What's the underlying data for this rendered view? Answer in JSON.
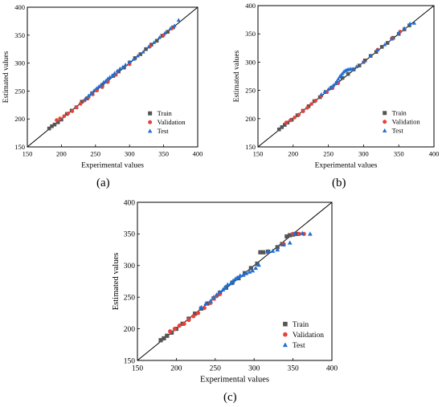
{
  "panels": [
    {
      "label": "(a)"
    },
    {
      "label": "(b)"
    },
    {
      "label": "(c)"
    }
  ],
  "colors": {
    "train": "#555555",
    "validation": "#e8403a",
    "test": "#1f6fd6",
    "line": "#000000"
  },
  "chart_data": [
    {
      "type": "scatter",
      "xlabel": "Experimental values",
      "ylabel": "Estimated values",
      "xlim": [
        150,
        400
      ],
      "ylim": [
        150,
        400
      ],
      "xticks": [
        150,
        200,
        250,
        300,
        350,
        400
      ],
      "yticks": [
        150,
        200,
        250,
        300,
        350,
        400
      ],
      "grid": false,
      "legend_position": "bottom-right",
      "reference_line": {
        "from": [
          150,
          150
        ],
        "to": [
          400,
          400
        ]
      },
      "series": [
        {
          "name": "Train",
          "marker": "square",
          "points": [
            [
              182,
              183
            ],
            [
              186,
              187
            ],
            [
              190,
              190
            ],
            [
              195,
              194
            ],
            [
              200,
              199
            ],
            [
              208,
              209
            ],
            [
              215,
              215
            ],
            [
              222,
              221
            ],
            [
              230,
              231
            ],
            [
              238,
              237
            ],
            [
              245,
              246
            ],
            [
              252,
              252
            ],
            [
              260,
              261
            ],
            [
              268,
              268
            ],
            [
              276,
              277
            ],
            [
              284,
              285
            ],
            [
              292,
              292
            ],
            [
              300,
              301
            ],
            [
              308,
              309
            ],
            [
              316,
              316
            ],
            [
              324,
              325
            ],
            [
              332,
              333
            ],
            [
              340,
              340
            ],
            [
              348,
              349
            ],
            [
              356,
              356
            ],
            [
              364,
              364
            ]
          ]
        },
        {
          "name": "Validation",
          "marker": "circle",
          "points": [
            [
              193,
              198
            ],
            [
              198,
              201
            ],
            [
              204,
              205
            ],
            [
              210,
              210
            ],
            [
              216,
              214
            ],
            [
              222,
              221
            ],
            [
              228,
              227
            ],
            [
              234,
              233
            ],
            [
              240,
              239
            ],
            [
              246,
              244
            ],
            [
              252,
              251
            ],
            [
              260,
              257
            ],
            [
              268,
              266
            ],
            [
              280,
              279
            ],
            [
              300,
              298
            ],
            [
              330,
              330
            ],
            [
              350,
              350
            ],
            [
              362,
              362
            ]
          ]
        },
        {
          "name": "Test",
          "marker": "triangle",
          "points": [
            [
              235,
              236
            ],
            [
              240,
              242
            ],
            [
              244,
              246
            ],
            [
              248,
              251
            ],
            [
              252,
              255
            ],
            [
              255,
              258
            ],
            [
              258,
              261
            ],
            [
              262,
              266
            ],
            [
              265,
              268
            ],
            [
              268,
              272
            ],
            [
              271,
              275
            ],
            [
              275,
              278
            ],
            [
              278,
              282
            ],
            [
              282,
              286
            ],
            [
              286,
              290
            ],
            [
              290,
              293
            ],
            [
              294,
              297
            ],
            [
              300,
              302
            ],
            [
              306,
              307
            ],
            [
              312,
              313
            ],
            [
              320,
              320
            ],
            [
              328,
              329
            ],
            [
              336,
              337
            ],
            [
              344,
              346
            ],
            [
              352,
              354
            ],
            [
              360,
              362
            ],
            [
              366,
              367
            ],
            [
              372,
              377
            ]
          ]
        }
      ]
    },
    {
      "type": "scatter",
      "xlabel": "Experimental values",
      "ylabel": "Estimated values",
      "xlim": [
        150,
        400
      ],
      "ylim": [
        150,
        400
      ],
      "xticks": [
        150,
        200,
        250,
        300,
        350,
        400
      ],
      "yticks": [
        150,
        200,
        250,
        300,
        350,
        400
      ],
      "grid": false,
      "legend_position": "bottom-right",
      "reference_line": {
        "from": [
          150,
          150
        ],
        "to": [
          400,
          400
        ]
      },
      "series": [
        {
          "name": "Train",
          "marker": "square",
          "points": [
            [
              180,
              181
            ],
            [
              184,
              185
            ],
            [
              188,
              189
            ],
            [
              192,
              193
            ],
            [
              198,
              198
            ],
            [
              206,
              206
            ],
            [
              214,
              214
            ],
            [
              222,
              222
            ],
            [
              230,
              231
            ],
            [
              238,
              238
            ],
            [
              246,
              247
            ],
            [
              254,
              254
            ],
            [
              262,
              263
            ],
            [
              270,
              272
            ],
            [
              278,
              279
            ],
            [
              286,
              287
            ],
            [
              294,
              294
            ],
            [
              302,
              303
            ],
            [
              310,
              311
            ],
            [
              318,
              318
            ],
            [
              326,
              327
            ],
            [
              334,
              334
            ],
            [
              342,
              343
            ],
            [
              350,
              350
            ],
            [
              358,
              358
            ],
            [
              365,
              365
            ]
          ]
        },
        {
          "name": "Validation",
          "marker": "circle",
          "points": [
            [
              190,
              193
            ],
            [
              196,
              197
            ],
            [
              202,
              202
            ],
            [
              208,
              207
            ],
            [
              214,
              213
            ],
            [
              220,
              219
            ],
            [
              226,
              226
            ],
            [
              232,
              232
            ],
            [
              240,
              240
            ],
            [
              248,
              247
            ],
            [
              256,
              254
            ],
            [
              264,
              263
            ],
            [
              300,
              300
            ],
            [
              320,
              322
            ],
            [
              340,
              342
            ],
            [
              352,
              354
            ]
          ]
        },
        {
          "name": "Test",
          "marker": "triangle",
          "points": [
            [
              240,
              243
            ],
            [
              245,
              248
            ],
            [
              250,
              252
            ],
            [
              254,
              256
            ],
            [
              257,
              259
            ],
            [
              260,
              262
            ],
            [
              262,
              266
            ],
            [
              264,
              270
            ],
            [
              266,
              274
            ],
            [
              268,
              277
            ],
            [
              270,
              280
            ],
            [
              272,
              283
            ],
            [
              274,
              285
            ],
            [
              276,
              286
            ],
            [
              278,
              287
            ],
            [
              280,
              287
            ],
            [
              282,
              288
            ],
            [
              285,
              288
            ],
            [
              290,
              292
            ],
            [
              300,
              300
            ],
            [
              310,
              311
            ],
            [
              320,
              322
            ],
            [
              330,
              331
            ],
            [
              340,
              341
            ],
            [
              350,
              352
            ],
            [
              358,
              360
            ],
            [
              366,
              368
            ],
            [
              372,
              369
            ]
          ]
        }
      ]
    },
    {
      "type": "scatter",
      "xlabel": "Experimental values",
      "ylabel": "Estimated values",
      "xlim": [
        150,
        400
      ],
      "ylim": [
        150,
        400
      ],
      "xticks": [
        150,
        200,
        250,
        300,
        350,
        400
      ],
      "yticks": [
        150,
        200,
        250,
        300,
        350,
        400
      ],
      "grid": false,
      "legend_position": "bottom-right",
      "reference_line": {
        "from": [
          150,
          150
        ],
        "to": [
          400,
          400
        ]
      },
      "series": [
        {
          "name": "Train",
          "marker": "square",
          "points": [
            [
              180,
              182
            ],
            [
              184,
              185
            ],
            [
              188,
              189
            ],
            [
              194,
              194
            ],
            [
              200,
              200
            ],
            [
              208,
              208
            ],
            [
              216,
              216
            ],
            [
              224,
              224
            ],
            [
              232,
              232
            ],
            [
              240,
              240
            ],
            [
              248,
              248
            ],
            [
              256,
              257
            ],
            [
              264,
              265
            ],
            [
              272,
              273
            ],
            [
              280,
              280
            ],
            [
              288,
              288
            ],
            [
              296,
              296
            ],
            [
              304,
              303
            ],
            [
              308,
              321
            ],
            [
              312,
              321
            ],
            [
              318,
              322
            ],
            [
              330,
              329
            ],
            [
              336,
              334
            ],
            [
              342,
              346
            ],
            [
              346,
              348
            ],
            [
              350,
              349
            ],
            [
              354,
              350
            ]
          ]
        },
        {
          "name": "Validation",
          "marker": "circle",
          "points": [
            [
              192,
              196
            ],
            [
              198,
              200
            ],
            [
              204,
              205
            ],
            [
              210,
              208
            ],
            [
              216,
              214
            ],
            [
              222,
              220
            ],
            [
              228,
              225
            ],
            [
              236,
              233
            ],
            [
              244,
              241
            ],
            [
              248,
              248
            ],
            [
              252,
              252
            ],
            [
              256,
              255
            ],
            [
              338,
              334
            ],
            [
              350,
              350
            ],
            [
              358,
              350
            ],
            [
              364,
              350
            ]
          ]
        },
        {
          "name": "Test",
          "marker": "triangle",
          "points": [
            [
              232,
              234
            ],
            [
              238,
              240
            ],
            [
              244,
              244
            ],
            [
              248,
              250
            ],
            [
              252,
              254
            ],
            [
              256,
              258
            ],
            [
              260,
              262
            ],
            [
              263,
              266
            ],
            [
              266,
              270
            ],
            [
              270,
              272
            ],
            [
              273,
              276
            ],
            [
              276,
              279
            ],
            [
              279,
              281
            ],
            [
              282,
              284
            ],
            [
              286,
              285
            ],
            [
              290,
              288
            ],
            [
              294,
              290
            ],
            [
              298,
              292
            ],
            [
              302,
              296
            ],
            [
              306,
              301
            ],
            [
              318,
              322
            ],
            [
              324,
              323
            ],
            [
              330,
              325
            ],
            [
              338,
              333
            ],
            [
              346,
              336
            ],
            [
              352,
              350
            ],
            [
              362,
              351
            ],
            [
              372,
              350
            ]
          ]
        }
      ]
    }
  ]
}
